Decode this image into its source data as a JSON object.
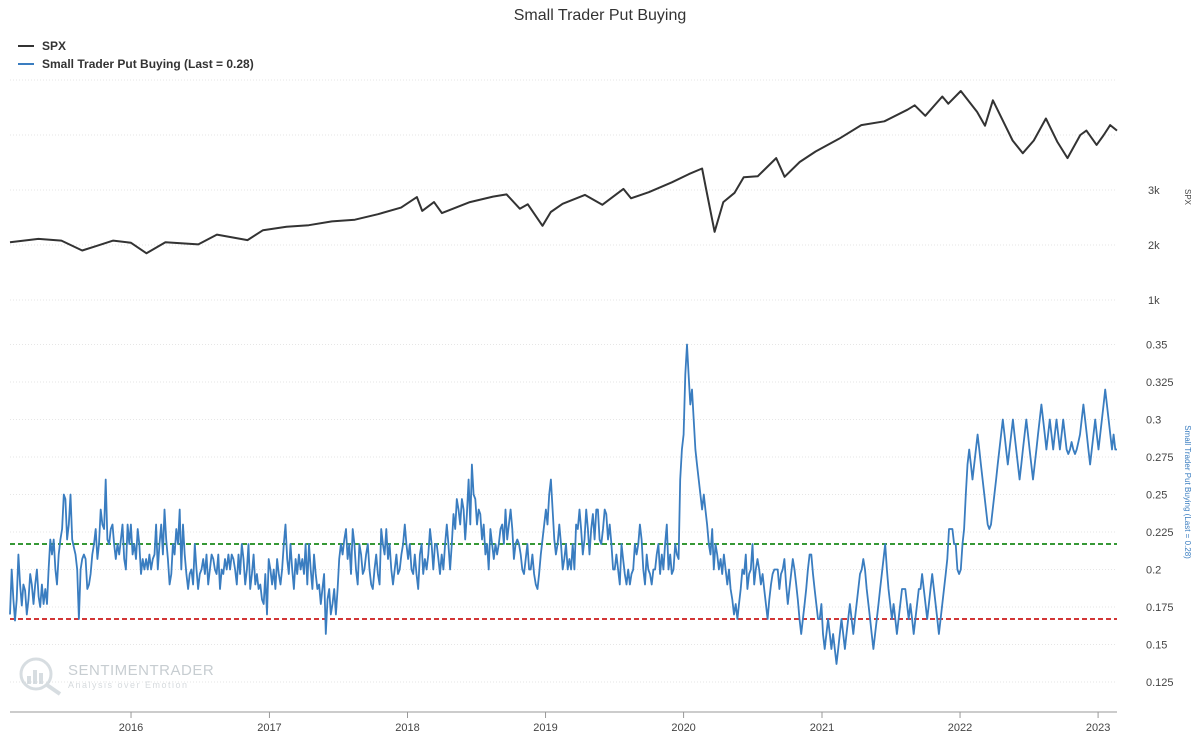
{
  "title": "Small Trader Put Buying",
  "watermark": {
    "line1": "SENTIMENTRADER",
    "line2": "Analysis over Emotion"
  },
  "colors": {
    "spx": "#333333",
    "put": "#3a7dc0",
    "upper_line": "#1a8a1a",
    "lower_line": "#cc1a1a"
  },
  "chart_data": [
    {
      "type": "line",
      "title": "Small Trader Put Buying",
      "legend_position": "top-left",
      "grid": true,
      "x_ticks": [
        "2016",
        "2017",
        "2018",
        "2019",
        "2020",
        "2021",
        "2022",
        "2023"
      ],
      "series": [
        {
          "name": "SPX",
          "ylabel": "SPX",
          "y_axis": "right",
          "ylim": [
            1000,
            5000
          ],
          "y_ticks": [
            "1k",
            "2k",
            "3k"
          ],
          "x": [
            "2015-02-15",
            "2015-05-01",
            "2015-07-01",
            "2015-08-25",
            "2015-10-01",
            "2015-11-15",
            "2016-01-01",
            "2016-02-11",
            "2016-04-01",
            "2016-06-27",
            "2016-08-15",
            "2016-11-04",
            "2016-12-15",
            "2017-02-15",
            "2017-04-15",
            "2017-06-15",
            "2017-08-15",
            "2017-10-15",
            "2017-12-15",
            "2018-01-26",
            "2018-02-09",
            "2018-03-12",
            "2018-04-02",
            "2018-06-15",
            "2018-08-15",
            "2018-09-20",
            "2018-10-25",
            "2018-11-15",
            "2018-12-24",
            "2019-01-15",
            "2019-02-15",
            "2019-04-15",
            "2019-05-31",
            "2019-07-26",
            "2019-08-15",
            "2019-10-01",
            "2019-12-01",
            "2020-01-15",
            "2020-02-19",
            "2020-03-01",
            "2020-03-23",
            "2020-04-15",
            "2020-05-15",
            "2020-06-08",
            "2020-07-15",
            "2020-09-02",
            "2020-09-24",
            "2020-11-03",
            "2020-12-15",
            "2021-02-15",
            "2021-04-15",
            "2021-06-15",
            "2021-08-15",
            "2021-09-03",
            "2021-10-01",
            "2021-11-15",
            "2021-12-01",
            "2022-01-03",
            "2022-02-15",
            "2022-03-08",
            "2022-03-29",
            "2022-05-20",
            "2022-06-16",
            "2022-07-15",
            "2022-08-16",
            "2022-09-15",
            "2022-10-12",
            "2022-11-15",
            "2022-12-01",
            "2022-12-28",
            "2023-01-15",
            "2023-02-02",
            "2023-02-20"
          ],
          "values": [
            2050,
            2110,
            2080,
            1900,
            1980,
            2080,
            2040,
            1850,
            2050,
            2010,
            2190,
            2090,
            2270,
            2330,
            2360,
            2430,
            2460,
            2560,
            2680,
            2870,
            2620,
            2780,
            2580,
            2780,
            2880,
            2920,
            2660,
            2740,
            2350,
            2600,
            2750,
            2910,
            2730,
            3020,
            2850,
            2960,
            3140,
            3290,
            3390,
            3000,
            2240,
            2780,
            2950,
            3230,
            3250,
            3580,
            3240,
            3510,
            3700,
            3930,
            4180,
            4250,
            4460,
            4540,
            4350,
            4700,
            4570,
            4800,
            4420,
            4170,
            4630,
            3900,
            3670,
            3900,
            4300,
            3880,
            3580,
            4000,
            4080,
            3820,
            3990,
            4180,
            4080
          ]
        },
        {
          "name": "Small Trader Put Buying (Last = 0.28)",
          "ylabel": "Small Trader Put Buying (Last = 0.28)",
          "y_axis": "right",
          "ylim": [
            0.105,
            0.355
          ],
          "y_ticks": [
            "0.125",
            "0.15",
            "0.175",
            "0.2",
            "0.225",
            "0.25",
            "0.275",
            "0.3",
            "0.325",
            "0.35"
          ],
          "reference_lines": [
            0.217,
            0.167
          ],
          "x_start": "2015-02-15",
          "x_end": "2023-02-20",
          "values": [
            0.17,
            0.2,
            0.18,
            0.166,
            0.18,
            0.21,
            0.19,
            0.176,
            0.19,
            0.186,
            0.17,
            0.18,
            0.197,
            0.19,
            0.177,
            0.19,
            0.2,
            0.182,
            0.175,
            0.19,
            0.177,
            0.187,
            0.177,
            0.2,
            0.22,
            0.21,
            0.22,
            0.2,
            0.19,
            0.21,
            0.22,
            0.227,
            0.25,
            0.247,
            0.22,
            0.23,
            0.25,
            0.22,
            0.215,
            0.21,
            0.2,
            0.167,
            0.2,
            0.207,
            0.21,
            0.207,
            0.187,
            0.19,
            0.197,
            0.21,
            0.217,
            0.227,
            0.207,
            0.217,
            0.24,
            0.23,
            0.227,
            0.26,
            0.22,
            0.217,
            0.227,
            0.23,
            0.217,
            0.207,
            0.217,
            0.21,
            0.22,
            0.23,
            0.207,
            0.2,
            0.23,
            0.217,
            0.23,
            0.21,
            0.217,
            0.207,
            0.227,
            0.217,
            0.197,
            0.207,
            0.2,
            0.207,
            0.2,
            0.21,
            0.2,
            0.207,
            0.21,
            0.23,
            0.2,
            0.217,
            0.23,
            0.21,
            0.24,
            0.22,
            0.207,
            0.19,
            0.197,
            0.217,
            0.21,
            0.227,
            0.217,
            0.24,
            0.2,
            0.23,
            0.21,
            0.197,
            0.187,
            0.197,
            0.2,
            0.19,
            0.217,
            0.2,
            0.187,
            0.197,
            0.2,
            0.207,
            0.197,
            0.21,
            0.19,
            0.2,
            0.21,
            0.207,
            0.2,
            0.197,
            0.21,
            0.187,
            0.2,
            0.197,
            0.207,
            0.2,
            0.21,
            0.2,
            0.21,
            0.207,
            0.2,
            0.19,
            0.21,
            0.197,
            0.217,
            0.207,
            0.19,
            0.2,
            0.217,
            0.187,
            0.197,
            0.21,
            0.19,
            0.197,
            0.187,
            0.19,
            0.18,
            0.177,
            0.197,
            0.17,
            0.207,
            0.2,
            0.19,
            0.2,
            0.187,
            0.207,
            0.197,
            0.19,
            0.2,
            0.217,
            0.23,
            0.207,
            0.197,
            0.217,
            0.2,
            0.187,
            0.207,
            0.197,
            0.21,
            0.2,
            0.207,
            0.197,
            0.217,
            0.19,
            0.217,
            0.2,
            0.187,
            0.21,
            0.197,
            0.187,
            0.19,
            0.177,
            0.187,
            0.197,
            0.157,
            0.18,
            0.187,
            0.17,
            0.177,
            0.187,
            0.17,
            0.187,
            0.207,
            0.217,
            0.21,
            0.22,
            0.227,
            0.207,
            0.217,
            0.197,
            0.227,
            0.217,
            0.2,
            0.19,
            0.217,
            0.21,
            0.197,
            0.2,
            0.21,
            0.217,
            0.2,
            0.19,
            0.187,
            0.2,
            0.21,
            0.197,
            0.19,
            0.227,
            0.217,
            0.21,
            0.227,
            0.207,
            0.217,
            0.2,
            0.19,
            0.2,
            0.21,
            0.197,
            0.2,
            0.21,
            0.217,
            0.23,
            0.217,
            0.207,
            0.217,
            0.2,
            0.197,
            0.21,
            0.197,
            0.187,
            0.21,
            0.217,
            0.197,
            0.207,
            0.2,
            0.21,
            0.227,
            0.217,
            0.2,
            0.217,
            0.217,
            0.207,
            0.197,
            0.21,
            0.2,
            0.217,
            0.23,
            0.217,
            0.2,
            0.217,
            0.237,
            0.227,
            0.247,
            0.24,
            0.23,
            0.247,
            0.24,
            0.22,
            0.237,
            0.26,
            0.23,
            0.27,
            0.25,
            0.247,
            0.23,
            0.24,
            0.237,
            0.22,
            0.23,
            0.21,
            0.217,
            0.2,
            0.227,
            0.217,
            0.207,
            0.217,
            0.21,
            0.217,
            0.227,
            0.23,
            0.217,
            0.24,
            0.22,
            0.23,
            0.24,
            0.227,
            0.207,
            0.217,
            0.22,
            0.217,
            0.21,
            0.2,
            0.197,
            0.207,
            0.217,
            0.2,
            0.2,
            0.21,
            0.197,
            0.19,
            0.187,
            0.197,
            0.21,
            0.22,
            0.23,
            0.24,
            0.23,
            0.25,
            0.26,
            0.24,
            0.22,
            0.21,
            0.217,
            0.23,
            0.217,
            0.2,
            0.207,
            0.217,
            0.2,
            0.207,
            0.2,
            0.217,
            0.2,
            0.23,
            0.227,
            0.24,
            0.227,
            0.21,
            0.22,
            0.24,
            0.227,
            0.21,
            0.227,
            0.237,
            0.22,
            0.24,
            0.24,
            0.22,
            0.217,
            0.227,
            0.24,
            0.237,
            0.22,
            0.23,
            0.217,
            0.2,
            0.2,
            0.21,
            0.2,
            0.19,
            0.217,
            0.207,
            0.197,
            0.19,
            0.2,
            0.19,
            0.197,
            0.2,
            0.217,
            0.21,
            0.217,
            0.23,
            0.22,
            0.2,
            0.19,
            0.21,
            0.2,
            0.197,
            0.19,
            0.2,
            0.2,
            0.21,
            0.217,
            0.197,
            0.21,
            0.2,
            0.217,
            0.23,
            0.2,
            0.21,
            0.197,
            0.2,
            0.217,
            0.21,
            0.207,
            0.26,
            0.28,
            0.29,
            0.33,
            0.35,
            0.33,
            0.31,
            0.32,
            0.3,
            0.28,
            0.27,
            0.26,
            0.25,
            0.24,
            0.25,
            0.24,
            0.23,
            0.217,
            0.21,
            0.227,
            0.2,
            0.217,
            0.21,
            0.2,
            0.207,
            0.197,
            0.21,
            0.2,
            0.19,
            0.2,
            0.187,
            0.18,
            0.17,
            0.177,
            0.167,
            0.177,
            0.187,
            0.2,
            0.197,
            0.21,
            0.187,
            0.197,
            0.2,
            0.217,
            0.19,
            0.2,
            0.207,
            0.2,
            0.19,
            0.197,
            0.187,
            0.177,
            0.167,
            0.18,
            0.19,
            0.197,
            0.2,
            0.2,
            0.2,
            0.187,
            0.197,
            0.2,
            0.207,
            0.19,
            0.177,
            0.187,
            0.197,
            0.207,
            0.2,
            0.19,
            0.18,
            0.167,
            0.157,
            0.167,
            0.177,
            0.187,
            0.2,
            0.21,
            0.21,
            0.197,
            0.187,
            0.177,
            0.167,
            0.167,
            0.177,
            0.157,
            0.147,
            0.157,
            0.167,
            0.157,
            0.147,
            0.157,
            0.147,
            0.137,
            0.147,
            0.157,
            0.167,
            0.157,
            0.147,
            0.157,
            0.167,
            0.177,
            0.167,
            0.157,
            0.167,
            0.177,
            0.187,
            0.197,
            0.2,
            0.207,
            0.2,
            0.187,
            0.177,
            0.167,
            0.157,
            0.147,
            0.157,
            0.167,
            0.177,
            0.187,
            0.197,
            0.207,
            0.217,
            0.2,
            0.187,
            0.177,
            0.167,
            0.177,
            0.167,
            0.157,
            0.167,
            0.177,
            0.187,
            0.187,
            0.187,
            0.177,
            0.167,
            0.177,
            0.167,
            0.157,
            0.167,
            0.177,
            0.187,
            0.187,
            0.197,
            0.187,
            0.177,
            0.167,
            0.177,
            0.187,
            0.197,
            0.187,
            0.177,
            0.167,
            0.157,
            0.167,
            0.177,
            0.187,
            0.197,
            0.207,
            0.227,
            0.227,
            0.227,
            0.217,
            0.217,
            0.2,
            0.197,
            0.2,
            0.217,
            0.227,
            0.25,
            0.27,
            0.28,
            0.27,
            0.26,
            0.27,
            0.28,
            0.29,
            0.28,
            0.27,
            0.26,
            0.25,
            0.24,
            0.23,
            0.227,
            0.23,
            0.24,
            0.25,
            0.26,
            0.27,
            0.28,
            0.29,
            0.3,
            0.29,
            0.28,
            0.27,
            0.28,
            0.29,
            0.3,
            0.29,
            0.28,
            0.27,
            0.26,
            0.27,
            0.28,
            0.29,
            0.3,
            0.29,
            0.28,
            0.27,
            0.26,
            0.27,
            0.28,
            0.29,
            0.3,
            0.31,
            0.3,
            0.29,
            0.28,
            0.29,
            0.3,
            0.29,
            0.28,
            0.29,
            0.3,
            0.29,
            0.28,
            0.29,
            0.3,
            0.29,
            0.28,
            0.277,
            0.28,
            0.285,
            0.28,
            0.277,
            0.28,
            0.285,
            0.29,
            0.3,
            0.31,
            0.3,
            0.29,
            0.28,
            0.27,
            0.28,
            0.29,
            0.3,
            0.29,
            0.28,
            0.29,
            0.3,
            0.31,
            0.32,
            0.31,
            0.3,
            0.29,
            0.28,
            0.29,
            0.28,
            0.28
          ]
        }
      ]
    }
  ]
}
